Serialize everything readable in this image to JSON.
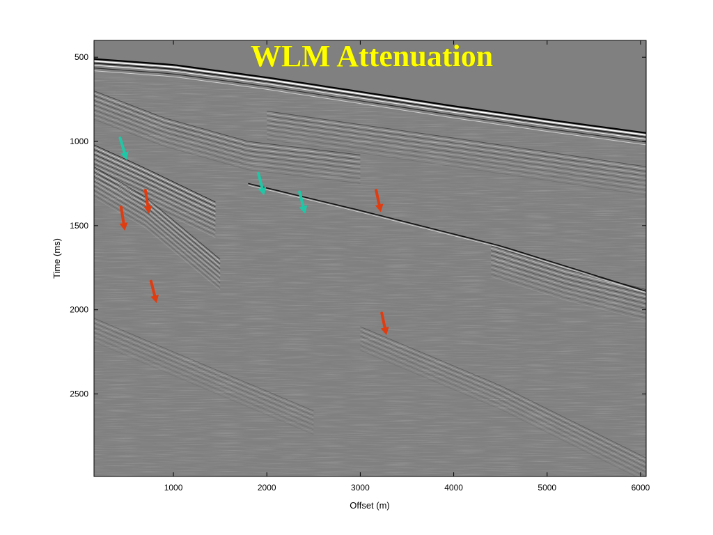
{
  "slide": {
    "title": "WLM Attenuation"
  },
  "chart_data": {
    "type": "seismic-section",
    "title": "WLM Attenuation",
    "xlabel": "Offset (m)",
    "ylabel": "Time (ms)",
    "xlim": [
      150,
      6060
    ],
    "ylim": [
      400,
      2990
    ],
    "y_inverted": true,
    "x_ticks": [
      1000,
      2000,
      3000,
      4000,
      5000,
      6000
    ],
    "y_ticks": [
      500,
      1000,
      1500,
      2000,
      2500
    ],
    "grid": false,
    "background_color": "#808080",
    "water_bottom": {
      "x": [
        150,
        1000,
        2000,
        3000,
        4000,
        5000,
        6060
      ],
      "y": [
        510,
        545,
        620,
        705,
        790,
        870,
        950
      ]
    },
    "interbed_multiple": {
      "x": [
        1800,
        3000,
        4500,
        6060
      ],
      "y": [
        1250,
        1410,
        1620,
        1890
      ]
    },
    "reflector_packets": [
      {
        "x": [
          150,
          700,
          1450
        ],
        "y": [
          1020,
          1160,
          1360
        ],
        "strength": 0.8
      },
      {
        "x": [
          150,
          700,
          1500
        ],
        "y": [
          1150,
          1330,
          1700
        ],
        "strength": 0.6
      },
      {
        "x": [
          150,
          900,
          1800,
          3000
        ],
        "y": [
          700,
          860,
          1000,
          1080
        ],
        "strength": 0.5
      },
      {
        "x": [
          2000,
          4000,
          6060
        ],
        "y": [
          820,
          980,
          1150
        ],
        "strength": 0.45
      },
      {
        "x": [
          4400,
          5200,
          6060
        ],
        "y": [
          1620,
          1760,
          1880
        ],
        "strength": 0.55
      },
      {
        "x": [
          150,
          1000,
          2500
        ],
        "y": [
          2050,
          2250,
          2600
        ],
        "strength": 0.25
      },
      {
        "x": [
          3000,
          4500,
          6060
        ],
        "y": [
          2100,
          2450,
          2880
        ],
        "strength": 0.3
      }
    ],
    "arrows": [
      {
        "color": "#1ec8a6",
        "tail": [
          430,
          980
        ],
        "head": [
          500,
          1110
        ]
      },
      {
        "color": "#1ec8a6",
        "tail": [
          1910,
          1190
        ],
        "head": [
          1970,
          1320
        ]
      },
      {
        "color": "#1ec8a6",
        "tail": [
          2350,
          1300
        ],
        "head": [
          2410,
          1430
        ]
      },
      {
        "color": "#e03c10",
        "tail": [
          700,
          1290
        ],
        "head": [
          740,
          1430
        ]
      },
      {
        "color": "#e03c10",
        "tail": [
          440,
          1390
        ],
        "head": [
          480,
          1530
        ]
      },
      {
        "color": "#e03c10",
        "tail": [
          3170,
          1290
        ],
        "head": [
          3220,
          1420
        ]
      },
      {
        "color": "#e03c10",
        "tail": [
          760,
          1830
        ],
        "head": [
          820,
          1960
        ]
      },
      {
        "color": "#e03c10",
        "tail": [
          3230,
          2020
        ],
        "head": [
          3280,
          2150
        ]
      }
    ]
  }
}
